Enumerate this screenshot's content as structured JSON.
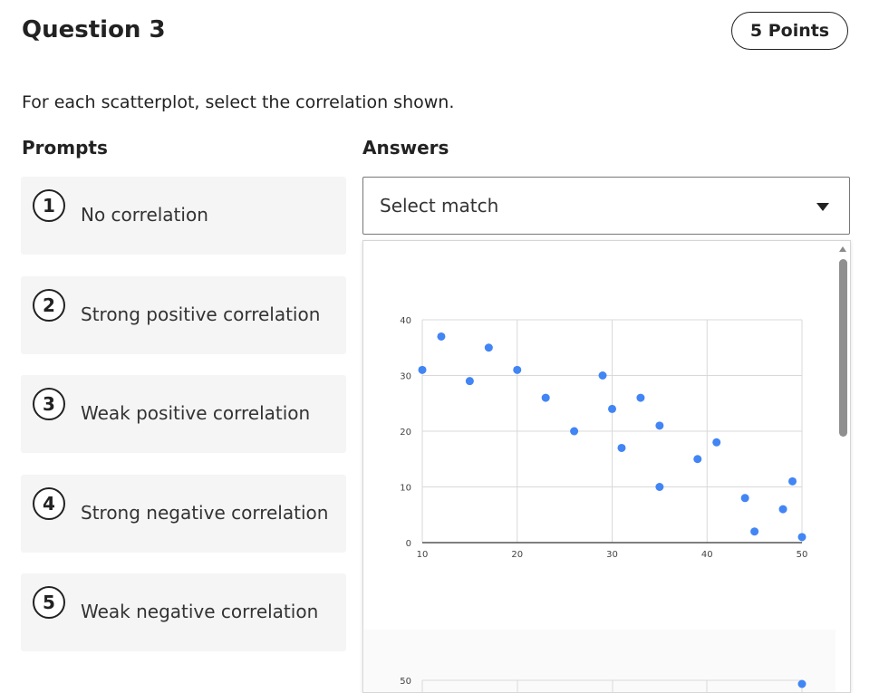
{
  "question": {
    "title": "Question 3",
    "points": "5 Points"
  },
  "instructions": "For each scatterplot, select the correlation shown.",
  "columns": {
    "prompts": "Prompts",
    "answers": "Answers"
  },
  "prompts": [
    {
      "number": "1",
      "label": "No correlation"
    },
    {
      "number": "2",
      "label": "Strong positive correlation"
    },
    {
      "number": "3",
      "label": "Weak positive correlation"
    },
    {
      "number": "4",
      "label": "Strong negative correlation"
    },
    {
      "number": "5",
      "label": "Weak negative correlation"
    }
  ],
  "answer_select": {
    "value": "Select match",
    "caret_icon": "caret-down-icon"
  },
  "chart_data": [
    {
      "type": "scatter",
      "x_ticks": [
        "10",
        "20",
        "30",
        "40",
        "50"
      ],
      "y_ticks": [
        "0",
        "10",
        "20",
        "30",
        "40"
      ],
      "xlim": [
        10,
        50
      ],
      "ylim": [
        0,
        40
      ],
      "grid": true,
      "point_color": "#4285f4",
      "points": [
        [
          10,
          31
        ],
        [
          12,
          37
        ],
        [
          15,
          29
        ],
        [
          17,
          35
        ],
        [
          20,
          31
        ],
        [
          23,
          26
        ],
        [
          26,
          20
        ],
        [
          29,
          30
        ],
        [
          30,
          24
        ],
        [
          31,
          17
        ],
        [
          33,
          26
        ],
        [
          35,
          21
        ],
        [
          35,
          10
        ],
        [
          39,
          15
        ],
        [
          41,
          18
        ],
        [
          44,
          8
        ],
        [
          45,
          2
        ],
        [
          48,
          6
        ],
        [
          49,
          11
        ],
        [
          50,
          1
        ]
      ]
    },
    {
      "type": "scatter",
      "partially_visible": true,
      "y_ticks": [
        "50"
      ],
      "point_color": "#4285f4",
      "points": [
        [
          50,
          50
        ]
      ]
    }
  ]
}
